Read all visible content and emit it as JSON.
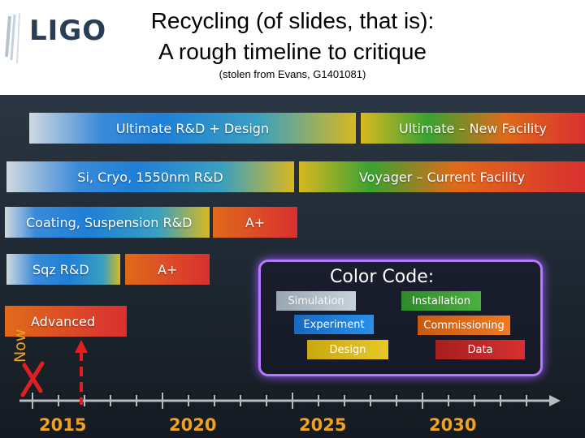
{
  "header": {
    "logo_text": "LIGO",
    "title_line1": "Recycling (of slides, that is):",
    "title_line2": "A rough timeline to critique",
    "subtitle": "(stolen from Evans, G1401081)"
  },
  "timeline": {
    "bars": [
      {
        "label": "Ultimate R&D + Design",
        "color": "#1f7fd6"
      },
      {
        "label": "Ultimate – New Facility",
        "color": "#d93030"
      },
      {
        "label": "Si, Cryo, 1550nm R&D",
        "color": "#1f7fd6"
      },
      {
        "label": "Voyager – Current Facility",
        "color": "#d93030"
      },
      {
        "label": "Coating, Suspension R&D",
        "color": "#1f7fd6"
      },
      {
        "label": "A+",
        "color": "#d93030"
      },
      {
        "label": "Sqz R&D",
        "color": "#1f7fd6"
      },
      {
        "label": "A+",
        "color": "#d93030"
      },
      {
        "label": "Advanced",
        "color": "#d93030"
      }
    ],
    "color_code": {
      "title": "Color Code:",
      "items": [
        {
          "label": "Simulation",
          "color": "#b8c4cc"
        },
        {
          "label": "Installation",
          "color": "#3aa232"
        },
        {
          "label": "Experiment",
          "color": "#1f7fd6"
        },
        {
          "label": "Commissioning",
          "color": "#e06a1a"
        },
        {
          "label": "Design",
          "color": "#d8b820"
        },
        {
          "label": "Data",
          "color": "#c82828"
        }
      ]
    },
    "axis": {
      "now_label": "Now",
      "years": [
        "2015",
        "2020",
        "2025",
        "2030"
      ]
    },
    "now_marker_color": "#e02020"
  }
}
